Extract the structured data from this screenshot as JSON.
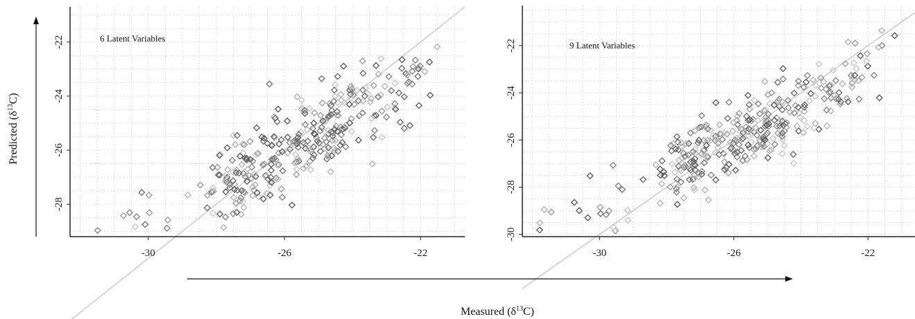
{
  "figure": {
    "x_axis_title": {
      "prefix": "Measured (δ",
      "sup": "13",
      "suffix": "C)"
    },
    "y_axis_title": {
      "prefix": "Predicted (δ",
      "sup": "13",
      "suffix": "C)"
    }
  },
  "chart_data": [
    {
      "type": "scatter",
      "panel_label": "6 Latent Variables",
      "x_ticks": [
        "-30",
        "-26",
        "-22"
      ],
      "y_ticks": [
        "-22",
        "-24",
        "-26",
        "-28"
      ],
      "xlim": [
        -32.3,
        -20.7
      ],
      "ylim": [
        -29.2,
        -20.7
      ],
      "grid": true,
      "reference_line": {
        "from": [
          -32.3,
          -32.3
        ],
        "to": [
          -20.7,
          -20.7
        ],
        "color": "#c8c8c8"
      },
      "marker": "diamond-open",
      "points_note": "approx. 360 points clustered along the 1:1 line",
      "seed": 7
    },
    {
      "type": "scatter",
      "panel_label": "9 Latent Variables",
      "x_ticks": [
        "-30",
        "-26",
        "-22"
      ],
      "y_ticks": [
        "-22",
        "-24",
        "-26",
        "-28",
        "-30"
      ],
      "xlim": [
        -32.3,
        -20.6
      ],
      "ylim": [
        -30.1,
        -20.3
      ],
      "grid": true,
      "reference_line": {
        "from": [
          -32.3,
          -32.3
        ],
        "to": [
          -20.6,
          -20.6
        ],
        "color": "#c8c8c8"
      },
      "marker": "diamond-open",
      "points_note": "approx. 360 points clustered along the 1:1 line",
      "seed": 13
    }
  ]
}
